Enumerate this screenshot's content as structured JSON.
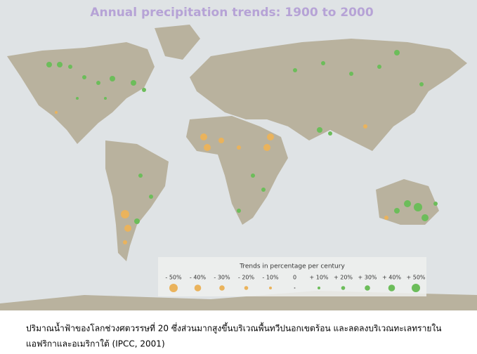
{
  "title": "Annual precipitation trends: 1900 to 2000",
  "legend": {
    "title": "Trends in percentage per century",
    "items": [
      "- 50%",
      "- 40%",
      "- 30%",
      "- 20%",
      "- 10%",
      "0",
      "+ 10%",
      "+ 20%",
      "+ 30%",
      "+ 40%",
      "+ 50%"
    ]
  },
  "caption": [
    "ปริมาณน้ำฟ้าของโลกช่วงศตวรรษที่ 20 ซึ่งส่วนมากสูงขึ้นบริเวณพื้นทวีปนอกเขตร้อน และลดลงบริเวณทะเลทรายใน",
    "แอฟริกาและอเมริกาใต้ (IPCC, 2001)"
  ]
}
